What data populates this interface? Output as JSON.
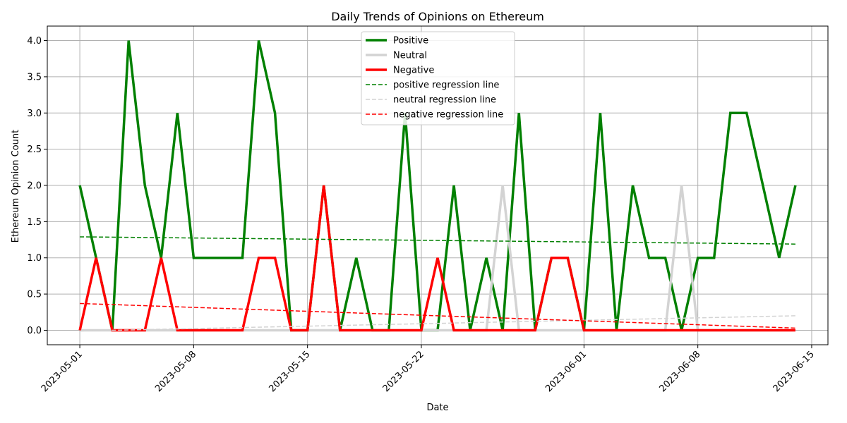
{
  "chart_data": {
    "type": "line",
    "title": "Daily Trends of Opinions on Ethereum",
    "xlabel": "Date",
    "ylabel": "Ethereum Opinion Count",
    "x_range": [
      "2023-04-29",
      "2023-06-16"
    ],
    "ylim": [
      -0.2,
      4.2
    ],
    "grid": true,
    "legend_position": "upper center",
    "x_ticks": [
      "2023-05-01",
      "2023-05-08",
      "2023-05-15",
      "2023-05-22",
      "2023-06-01",
      "2023-06-08",
      "2023-06-15"
    ],
    "y_ticks": [
      "0.0",
      "0.5",
      "1.0",
      "1.5",
      "2.0",
      "2.5",
      "3.0",
      "3.5",
      "4.0"
    ],
    "series": [
      {
        "name": "Positive",
        "color": "#008000",
        "style": "solid",
        "points": [
          [
            "2023-05-01",
            2
          ],
          [
            "2023-05-02",
            1
          ],
          [
            "2023-05-03",
            0
          ],
          [
            "2023-05-04",
            4
          ],
          [
            "2023-05-05",
            2
          ],
          [
            "2023-05-06",
            1
          ],
          [
            "2023-05-07",
            3
          ],
          [
            "2023-05-08",
            1
          ],
          [
            "2023-05-09",
            1
          ],
          [
            "2023-05-10",
            1
          ],
          [
            "2023-05-11",
            1
          ],
          [
            "2023-05-12",
            4
          ],
          [
            "2023-05-13",
            3
          ],
          [
            "2023-05-14",
            0
          ],
          [
            "2023-05-15",
            0
          ],
          [
            "2023-05-16",
            2
          ],
          [
            "2023-05-17",
            0
          ],
          [
            "2023-05-18",
            1
          ],
          [
            "2023-05-19",
            0
          ],
          [
            "2023-05-20",
            0
          ],
          [
            "2023-05-21",
            3
          ],
          [
            "2023-05-22",
            0
          ],
          [
            "2023-05-23",
            0
          ],
          [
            "2023-05-24",
            2
          ],
          [
            "2023-05-25",
            0
          ],
          [
            "2023-05-26",
            1
          ],
          [
            "2023-05-27",
            0
          ],
          [
            "2023-05-28",
            3
          ],
          [
            "2023-05-29",
            0
          ],
          [
            "2023-05-30",
            1
          ],
          [
            "2023-05-31",
            1
          ],
          [
            "2023-06-01",
            0
          ],
          [
            "2023-06-02",
            3
          ],
          [
            "2023-06-03",
            0
          ],
          [
            "2023-06-04",
            2
          ],
          [
            "2023-06-05",
            1
          ],
          [
            "2023-06-06",
            1
          ],
          [
            "2023-06-07",
            0
          ],
          [
            "2023-06-08",
            1
          ],
          [
            "2023-06-09",
            1
          ],
          [
            "2023-06-10",
            3
          ],
          [
            "2023-06-11",
            3
          ],
          [
            "2023-06-13",
            1
          ],
          [
            "2023-06-14",
            2
          ]
        ]
      },
      {
        "name": "Neutral",
        "color": "#d3d3d3",
        "style": "solid",
        "points": [
          [
            "2023-05-01",
            0
          ],
          [
            "2023-05-05",
            0
          ],
          [
            "2023-05-16",
            0
          ],
          [
            "2023-05-26",
            0
          ],
          [
            "2023-05-27",
            2
          ],
          [
            "2023-05-28",
            0
          ],
          [
            "2023-06-06",
            0
          ],
          [
            "2023-06-07",
            2
          ],
          [
            "2023-06-08",
            0
          ],
          [
            "2023-06-14",
            0
          ]
        ]
      },
      {
        "name": "Negative",
        "color": "#ff0000",
        "style": "solid",
        "points": [
          [
            "2023-05-01",
            0
          ],
          [
            "2023-05-02",
            1
          ],
          [
            "2023-05-03",
            0
          ],
          [
            "2023-05-04",
            0
          ],
          [
            "2023-05-05",
            0
          ],
          [
            "2023-05-06",
            1
          ],
          [
            "2023-05-07",
            0
          ],
          [
            "2023-05-08",
            0
          ],
          [
            "2023-05-09",
            0
          ],
          [
            "2023-05-10",
            0
          ],
          [
            "2023-05-11",
            0
          ],
          [
            "2023-05-12",
            1
          ],
          [
            "2023-05-13",
            1
          ],
          [
            "2023-05-14",
            0
          ],
          [
            "2023-05-15",
            0
          ],
          [
            "2023-05-16",
            2
          ],
          [
            "2023-05-17",
            0
          ],
          [
            "2023-05-18",
            0
          ],
          [
            "2023-05-19",
            0
          ],
          [
            "2023-05-20",
            0
          ],
          [
            "2023-05-21",
            0
          ],
          [
            "2023-05-22",
            0
          ],
          [
            "2023-05-23",
            1
          ],
          [
            "2023-05-24",
            0
          ],
          [
            "2023-05-25",
            0
          ],
          [
            "2023-05-26",
            0
          ],
          [
            "2023-05-27",
            0
          ],
          [
            "2023-05-28",
            0
          ],
          [
            "2023-05-29",
            0
          ],
          [
            "2023-05-30",
            1
          ],
          [
            "2023-05-31",
            1
          ],
          [
            "2023-06-01",
            0
          ],
          [
            "2023-06-14",
            0
          ]
        ]
      },
      {
        "name": "positive regression line",
        "color": "#008000",
        "style": "dashed",
        "points": [
          [
            "2023-05-01",
            1.29
          ],
          [
            "2023-06-14",
            1.19
          ]
        ]
      },
      {
        "name": "neutral regression line",
        "color": "#d3d3d3",
        "style": "dashed",
        "points": [
          [
            "2023-05-01",
            -0.01
          ],
          [
            "2023-06-14",
            0.2
          ]
        ]
      },
      {
        "name": "negative regression line",
        "color": "#ff0000",
        "style": "dashed",
        "points": [
          [
            "2023-05-01",
            0.37
          ],
          [
            "2023-06-14",
            0.03
          ]
        ]
      }
    ]
  }
}
